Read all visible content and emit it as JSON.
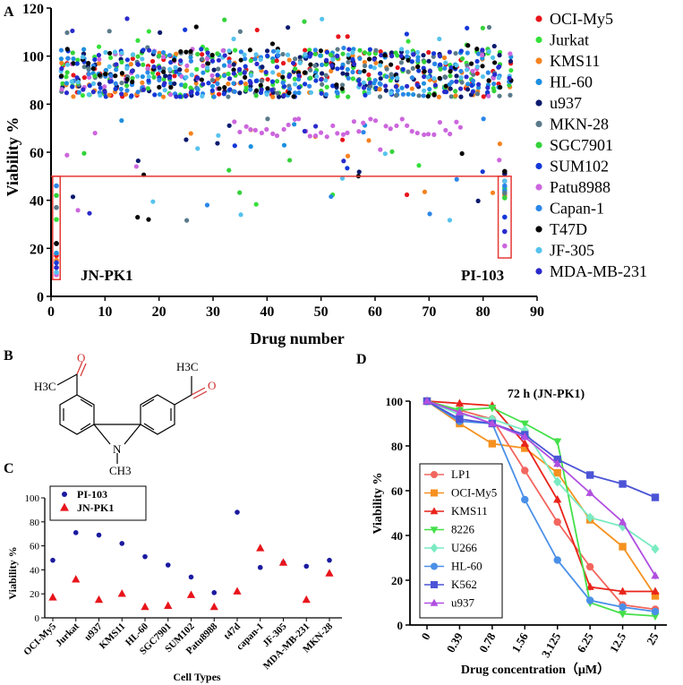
{
  "panels": {
    "A": "A",
    "B": "B",
    "C": "C",
    "D": "D"
  },
  "colors": {
    "highlight_box": "#e53935"
  },
  "molecule": {
    "label_left": "H3C",
    "label_right": "H3C",
    "label_n_methyl": "CH3",
    "atom_o": "O",
    "atom_n": "N"
  },
  "chart_data": [
    {
      "id": "A",
      "type": "scatter",
      "title": "",
      "xlabel": "Drug number",
      "ylabel": "Viability %",
      "xlim": [
        0,
        90
      ],
      "ylim": [
        0,
        120
      ],
      "xticks": [
        0,
        10,
        20,
        30,
        40,
        50,
        60,
        70,
        80,
        90
      ],
      "yticks": [
        0,
        20,
        40,
        60,
        80,
        100,
        120
      ],
      "threshold": 50,
      "annotations": [
        "JN-PK1",
        "PI-103"
      ],
      "legend": [
        {
          "name": "OCI-My5",
          "color": "#e8141b"
        },
        {
          "name": "Jurkat",
          "color": "#35e03a"
        },
        {
          "name": "KMS11",
          "color": "#f5821f"
        },
        {
          "name": "HL-60",
          "color": "#1e8fe0"
        },
        {
          "name": "u937",
          "color": "#0a1a6e"
        },
        {
          "name": "MKN-28",
          "color": "#5a7a8a"
        },
        {
          "name": "SGC7901",
          "color": "#34d23a"
        },
        {
          "name": "SUM102",
          "color": "#1438d8"
        },
        {
          "name": "Patu8988",
          "color": "#cc66dd"
        },
        {
          "name": "Capan-1",
          "color": "#2a86e8"
        },
        {
          "name": "T47D",
          "color": "#050505"
        },
        {
          "name": "JF-305",
          "color": "#55c2ee"
        },
        {
          "name": "MDA-MB-231",
          "color": "#2a2acc"
        }
      ],
      "highlight_points": [
        {
          "x": 1,
          "values": [
            17,
            32,
            15,
            18,
            22,
            37,
            42,
            14,
            9,
            46,
            22,
            10,
            12
          ]
        },
        {
          "x": 84,
          "values": [
            48,
            45,
            42,
            44,
            51,
            43,
            41,
            33,
            21,
            46,
            52,
            48,
            27
          ]
        }
      ]
    },
    {
      "id": "C",
      "type": "scatter",
      "title": "",
      "xlabel": "Cell Types",
      "ylabel": "Viability %",
      "ylim": [
        0,
        100
      ],
      "yticks": [
        0,
        20,
        40,
        60,
        80,
        100
      ],
      "categories": [
        "OCI-My5",
        "Jurkat",
        "u937",
        "KMS11",
        "HL-60",
        "SGC7901",
        "SUM102",
        "Patu8988",
        "t47d",
        "capan-1",
        "JF-305",
        "MDA-MB-231",
        "MKN-28"
      ],
      "series": [
        {
          "name": "PI-103",
          "color": "#1a1aa0",
          "marker": "circle",
          "values": [
            48,
            71,
            69,
            62,
            51,
            44,
            34,
            21,
            88,
            42,
            46,
            43,
            48
          ]
        },
        {
          "name": "JN-PK1",
          "color": "#e8141b",
          "marker": "triangle",
          "values": [
            17,
            32,
            15,
            20,
            9,
            10,
            19,
            9,
            22,
            58,
            46,
            15,
            37
          ]
        }
      ]
    },
    {
      "id": "D",
      "type": "line",
      "title": "72 h (JN-PK1)",
      "xlabel": "Drug concentration（μM）",
      "ylabel": "Viability %",
      "ylim": [
        0,
        100
      ],
      "yticks": [
        0,
        20,
        40,
        60,
        80,
        100
      ],
      "categories": [
        "0",
        "0.39",
        "0.78",
        "1.56",
        "3.125",
        "6.25",
        "12.5",
        "25"
      ],
      "series": [
        {
          "name": "LP1",
          "color": "#f2665e",
          "marker": "circle",
          "values": [
            100,
            96,
            92,
            69,
            46,
            26,
            9,
            7
          ]
        },
        {
          "name": "OCI-My5",
          "color": "#f5911f",
          "marker": "square",
          "values": [
            100,
            90,
            81,
            79,
            68,
            47,
            35,
            13
          ]
        },
        {
          "name": "KMS11",
          "color": "#e8241b",
          "marker": "triangle",
          "values": [
            100,
            99,
            98,
            81,
            56,
            17,
            15,
            15
          ]
        },
        {
          "name": "8226",
          "color": "#44e04a",
          "marker": "triangle-down",
          "values": [
            100,
            96,
            97,
            90,
            82,
            10,
            5,
            4
          ]
        },
        {
          "name": "U266",
          "color": "#7aebc2",
          "marker": "diamond",
          "values": [
            100,
            94,
            92,
            87,
            64,
            48,
            44,
            34
          ]
        },
        {
          "name": "HL-60",
          "color": "#4a90e8",
          "marker": "circle",
          "values": [
            100,
            91,
            90,
            56,
            29,
            11,
            8,
            6
          ]
        },
        {
          "name": "K562",
          "color": "#4c54d6",
          "marker": "square",
          "values": [
            100,
            92,
            90,
            85,
            74,
            67,
            63,
            57
          ]
        },
        {
          "name": "u937",
          "color": "#b04fe0",
          "marker": "triangle",
          "values": [
            100,
            95,
            90,
            84,
            72,
            59,
            46,
            22
          ]
        }
      ]
    }
  ]
}
